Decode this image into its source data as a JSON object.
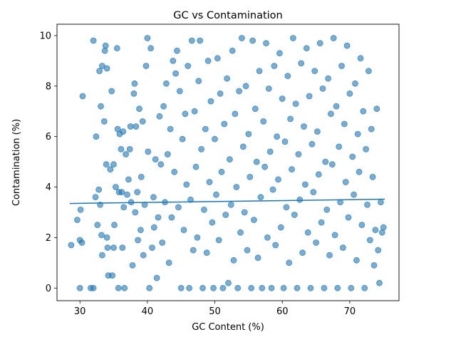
{
  "chart_data": {
    "type": "scatter",
    "title": "GC vs Contamination",
    "xlabel": "GC Content (%)",
    "ylabel": "Contamination (%)",
    "xlim": [
      26.6,
      77.3
    ],
    "ylim": [
      -0.5,
      10.45
    ],
    "xticks": [
      30,
      40,
      50,
      60,
      70
    ],
    "yticks": [
      0,
      2,
      4,
      6,
      8,
      10
    ],
    "grid": false,
    "legend": "none",
    "point_color": "#1f77b4",
    "trend_line": {
      "x": [
        28.5,
        75.2
      ],
      "y": [
        3.35,
        3.52
      ]
    },
    "series": [
      {
        "values_note": "",
        "points": [
          [
            28.7,
            1.7
          ],
          [
            29.6,
            2.7
          ],
          [
            30.0,
            0.0
          ],
          [
            30.1,
            3.1
          ],
          [
            30.0,
            1.9
          ],
          [
            30.3,
            1.8
          ],
          [
            30.4,
            7.6
          ],
          [
            31.6,
            0.0
          ],
          [
            32.0,
            0.0
          ],
          [
            32.0,
            9.8
          ],
          [
            32.3,
            3.6
          ],
          [
            32.4,
            6.0
          ],
          [
            32.6,
            2.5
          ],
          [
            32.8,
            3.9
          ],
          [
            32.9,
            8.6
          ],
          [
            33.0,
            3.3
          ],
          [
            33.1,
            7.2
          ],
          [
            33.2,
            2.1
          ],
          [
            33.3,
            1.3
          ],
          [
            33.3,
            8.8
          ],
          [
            33.6,
            6.6
          ],
          [
            33.7,
            9.4
          ],
          [
            33.8,
            9.6
          ],
          [
            33.9,
            4.9
          ],
          [
            34.0,
            2.0
          ],
          [
            34.0,
            8.7
          ],
          [
            34.1,
            1.6
          ],
          [
            34.2,
            0.5
          ],
          [
            34.5,
            4.7
          ],
          [
            34.7,
            7.8
          ],
          [
            34.8,
            0.5
          ],
          [
            35.0,
            4.9
          ],
          [
            35.0,
            1.6
          ],
          [
            35.1,
            2.5
          ],
          [
            35.3,
            4.0
          ],
          [
            35.5,
            9.5
          ],
          [
            35.6,
            6.3
          ],
          [
            35.7,
            0.0
          ],
          [
            35.8,
            3.8
          ],
          [
            35.9,
            6.1
          ],
          [
            36.1,
            5.5
          ],
          [
            36.2,
            3.8
          ],
          [
            36.3,
            1.6
          ],
          [
            36.4,
            6.2
          ],
          [
            36.5,
            3.2
          ],
          [
            36.6,
            0.0
          ],
          [
            36.8,
            5.3
          ],
          [
            37.0,
            3.7
          ],
          [
            37.2,
            4.3
          ],
          [
            37.4,
            5.5
          ],
          [
            37.5,
            6.4
          ],
          [
            37.6,
            3.4
          ],
          [
            37.8,
            0.9
          ],
          [
            38.0,
            7.7
          ],
          [
            38.1,
            8.1
          ],
          [
            38.2,
            3.0
          ],
          [
            38.3,
            6.4
          ],
          [
            38.5,
            3.8
          ],
          [
            38.6,
            1.9
          ],
          [
            38.8,
            7.1
          ],
          [
            39.0,
            2.3
          ],
          [
            39.1,
            4.4
          ],
          [
            39.3,
            6.6
          ],
          [
            39.4,
            1.3
          ],
          [
            39.6,
            3.3
          ],
          [
            39.8,
            8.8
          ],
          [
            40.0,
            9.9
          ],
          [
            40.1,
            5.4
          ],
          [
            40.3,
            0.0
          ],
          [
            40.5,
            9.5
          ],
          [
            40.7,
            1.6
          ],
          [
            40.9,
            3.6
          ],
          [
            41.0,
            2.4
          ],
          [
            41.2,
            5.1
          ],
          [
            41.4,
            0.4
          ],
          [
            41.6,
            2.8
          ],
          [
            41.8,
            6.8
          ],
          [
            42.0,
            4.9
          ],
          [
            42.2,
            1.8
          ],
          [
            42.4,
            7.2
          ],
          [
            42.6,
            3.4
          ],
          [
            42.8,
            8.1
          ],
          [
            43.0,
            5.3
          ],
          [
            43.2,
            1.0
          ],
          [
            43.4,
            6.3
          ],
          [
            43.6,
            2.8
          ],
          [
            43.8,
            9.0
          ],
          [
            44.0,
            4.6
          ],
          [
            44.2,
            8.5
          ],
          [
            44.4,
            9.4
          ],
          [
            44.6,
            3.2
          ],
          [
            44.8,
            7.8
          ],
          [
            45.0,
            0.0
          ],
          [
            45.2,
            5.9
          ],
          [
            45.4,
            2.3
          ],
          [
            45.6,
            6.9
          ],
          [
            45.8,
            4.1
          ],
          [
            46.0,
            8.8
          ],
          [
            46.2,
            0.0
          ],
          [
            46.4,
            3.5
          ],
          [
            46.6,
            9.8
          ],
          [
            46.8,
            1.5
          ],
          [
            47.0,
            7.0
          ],
          [
            47.2,
            4.8
          ],
          [
            47.4,
            2.0
          ],
          [
            47.6,
            8.2
          ],
          [
            47.8,
            9.8
          ],
          [
            48.0,
            5.5
          ],
          [
            48.2,
            0.0
          ],
          [
            48.4,
            3.1
          ],
          [
            48.6,
            6.3
          ],
          [
            48.8,
            1.4
          ],
          [
            49.0,
            9.0
          ],
          [
            49.2,
            4.2
          ],
          [
            49.4,
            7.4
          ],
          [
            49.6,
            2.6
          ],
          [
            49.8,
            0.0
          ],
          [
            50.0,
            5.9
          ],
          [
            50.2,
            3.7
          ],
          [
            50.4,
            9.1
          ],
          [
            50.6,
            1.9
          ],
          [
            50.8,
            7.7
          ],
          [
            51.0,
            4.6
          ],
          [
            51.2,
            0.0
          ],
          [
            51.4,
            6.5
          ],
          [
            51.6,
            2.9
          ],
          [
            51.8,
            8.3
          ],
          [
            52.0,
            0.2
          ],
          [
            52.2,
            5.1
          ],
          [
            52.4,
            3.3
          ],
          [
            52.6,
            9.4
          ],
          [
            52.8,
            1.1
          ],
          [
            53.0,
            6.9
          ],
          [
            53.2,
            4.0
          ],
          [
            53.4,
            0.0
          ],
          [
            53.6,
            7.8
          ],
          [
            53.8,
            2.2
          ],
          [
            54.0,
            9.9
          ],
          [
            54.2,
            5.6
          ],
          [
            54.4,
            3.0
          ],
          [
            54.6,
            8.0
          ],
          [
            54.8,
            1.5
          ],
          [
            55.0,
            6.1
          ],
          [
            55.2,
            4.4
          ],
          [
            55.4,
            0.0
          ],
          [
            55.6,
            9.8
          ],
          [
            55.8,
            2.7
          ],
          [
            56.0,
            7.1
          ],
          [
            56.2,
            5.0
          ],
          [
            56.4,
            1.2
          ],
          [
            56.6,
            8.6
          ],
          [
            56.8,
            3.6
          ],
          [
            57.0,
            0.0
          ],
          [
            57.2,
            6.6
          ],
          [
            57.4,
            4.8
          ],
          [
            57.6,
            9.7
          ],
          [
            57.8,
            2.0
          ],
          [
            58.0,
            7.9
          ],
          [
            58.2,
            5.4
          ],
          [
            58.4,
            0.0
          ],
          [
            58.6,
            3.9
          ],
          [
            58.8,
            8.8
          ],
          [
            59.0,
            1.7
          ],
          [
            59.2,
            6.0
          ],
          [
            59.4,
            4.3
          ],
          [
            59.6,
            9.3
          ],
          [
            59.8,
            2.4
          ],
          [
            60.0,
            7.5
          ],
          [
            60.2,
            0.0
          ],
          [
            60.4,
            5.8
          ],
          [
            60.6,
            3.2
          ],
          [
            60.8,
            8.4
          ],
          [
            61.0,
            1.0
          ],
          [
            61.2,
            6.7
          ],
          [
            61.4,
            4.7
          ],
          [
            61.6,
            9.9
          ],
          [
            61.8,
            2.9
          ],
          [
            62.0,
            7.3
          ],
          [
            62.2,
            0.0
          ],
          [
            62.4,
            5.3
          ],
          [
            62.6,
            3.5
          ],
          [
            62.8,
            8.9
          ],
          [
            63.0,
            1.4
          ],
          [
            63.2,
            6.4
          ],
          [
            63.4,
            4.1
          ],
          [
            63.6,
            9.5
          ],
          [
            63.8,
            2.2
          ],
          [
            64.0,
            7.6
          ],
          [
            64.2,
            0.0
          ],
          [
            64.4,
            5.7
          ],
          [
            64.6,
            3.8
          ],
          [
            64.8,
            8.6
          ],
          [
            65.0,
            1.8
          ],
          [
            65.2,
            6.2
          ],
          [
            65.4,
            4.5
          ],
          [
            65.6,
            9.7
          ],
          [
            65.8,
            2.6
          ],
          [
            66.0,
            7.9
          ],
          [
            66.2,
            0.0
          ],
          [
            66.4,
            5.0
          ],
          [
            66.6,
            3.1
          ],
          [
            66.8,
            8.3
          ],
          [
            67.0,
            1.3
          ],
          [
            67.2,
            6.9
          ],
          [
            67.4,
            4.9
          ],
          [
            67.6,
            9.9
          ],
          [
            67.8,
            2.1
          ],
          [
            68.0,
            7.2
          ],
          [
            68.2,
            0.0
          ],
          [
            68.4,
            5.6
          ],
          [
            68.6,
            3.4
          ],
          [
            68.8,
            8.8
          ],
          [
            69.0,
            1.6
          ],
          [
            69.2,
            6.5
          ],
          [
            69.4,
            4.2
          ],
          [
            69.6,
            9.6
          ],
          [
            69.8,
            2.8
          ],
          [
            70.0,
            7.7
          ],
          [
            70.2,
            0.0
          ],
          [
            70.4,
            5.2
          ],
          [
            70.6,
            3.7
          ],
          [
            70.8,
            8.1
          ],
          [
            71.0,
            1.1
          ],
          [
            71.2,
            6.1
          ],
          [
            71.4,
            4.6
          ],
          [
            71.6,
            9.1
          ],
          [
            71.8,
            2.5
          ],
          [
            72.0,
            7.0
          ],
          [
            72.2,
            0.0
          ],
          [
            72.4,
            5.5
          ],
          [
            72.6,
            3.3
          ],
          [
            72.8,
            8.6
          ],
          [
            73.0,
            1.9
          ],
          [
            73.2,
            6.3
          ],
          [
            73.4,
            4.4
          ],
          [
            73.6,
            0.9
          ],
          [
            73.8,
            2.3
          ],
          [
            74.0,
            7.1
          ],
          [
            74.2,
            1.5
          ],
          [
            74.4,
            0.2
          ],
          [
            74.6,
            3.4
          ],
          [
            74.8,
            2.2
          ],
          [
            75.0,
            2.4
          ]
        ]
      }
    ]
  }
}
